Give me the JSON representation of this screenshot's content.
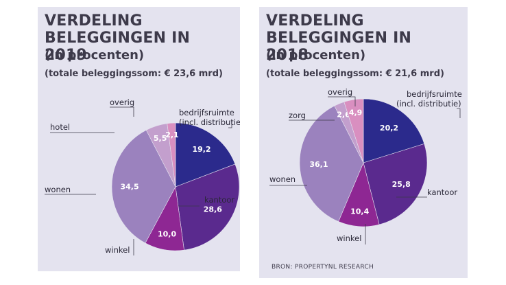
{
  "chart_data": [
    {
      "type": "pie",
      "title": "VERDELING BELEGGINGEN IN 2019",
      "subtitle": "(in procenten)",
      "total_label": "(totale beleggingssom: € 23,6 mrd)",
      "slices": [
        {
          "name": "bedrijfsruimte (incl. distributie)",
          "name_lines": [
            "bedrijfsruimte",
            "(incl. distributie)"
          ],
          "value": 19.2,
          "value_label": "19,2",
          "color": "#2b2a8c"
        },
        {
          "name": "kantoor",
          "name_lines": [
            "kantoor"
          ],
          "value": 28.6,
          "value_label": "28,6",
          "color": "#5a2a8e"
        },
        {
          "name": "winkel",
          "name_lines": [
            "winkel"
          ],
          "value": 10.0,
          "value_label": "10,0",
          "color": "#8e2793"
        },
        {
          "name": "wonen",
          "name_lines": [
            "wonen"
          ],
          "value": 34.5,
          "value_label": "34,5",
          "color": "#9b82be"
        },
        {
          "name": "hotel",
          "name_lines": [
            "hotel"
          ],
          "value": 5.5,
          "value_label": "5,5",
          "color": "#c39fcd"
        },
        {
          "name": "overig",
          "name_lines": [
            "overig"
          ],
          "value": 2.1,
          "value_label": "2,1",
          "color": "#d98fc0"
        }
      ]
    },
    {
      "type": "pie",
      "title": "VERDELING BELEGGINGEN IN 2018",
      "subtitle": "(in procenten)",
      "total_label": "(totale beleggingssom: € 21,6 mrd)",
      "source": "BRON: PROPERTYNL RESEARCH",
      "slices": [
        {
          "name": "bedrijfsruimte (incl. distributie)",
          "name_lines": [
            "bedrijfsruimte",
            "(incl. distributie)"
          ],
          "value": 20.2,
          "value_label": "20,2",
          "color": "#2b2a8c"
        },
        {
          "name": "kantoor",
          "name_lines": [
            "kantoor"
          ],
          "value": 25.8,
          "value_label": "25,8",
          "color": "#5a2a8e"
        },
        {
          "name": "winkel",
          "name_lines": [
            "winkel"
          ],
          "value": 10.4,
          "value_label": "10,4",
          "color": "#8e2793"
        },
        {
          "name": "wonen",
          "name_lines": [
            "wonen"
          ],
          "value": 36.1,
          "value_label": "36,1",
          "color": "#9b82be"
        },
        {
          "name": "zorg",
          "name_lines": [
            "zorg"
          ],
          "value": 2.6,
          "value_label": "2,6",
          "color": "#c39fcd"
        },
        {
          "name": "overig",
          "name_lines": [
            "overig"
          ],
          "value": 4.9,
          "value_label": "4,9",
          "color": "#d98fc0"
        }
      ]
    }
  ]
}
